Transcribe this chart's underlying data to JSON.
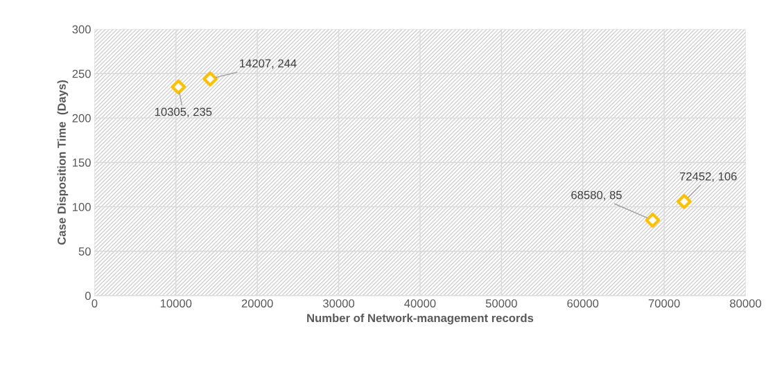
{
  "chart_data": {
    "type": "scatter",
    "xlabel": "Number of Network-management records",
    "ylabel": "Case Disposition Time  (Days)",
    "x": [
      10305,
      14207,
      68580,
      72452
    ],
    "series": [
      {
        "color": "#ffc000",
        "values": [
          235,
          244,
          85,
          106
        ],
        "value_labels": [
          "10305, 235",
          "14207, 244",
          "68580, 85",
          "72452, 106"
        ]
      }
    ],
    "xlim": [
      0,
      80000
    ],
    "xticks": [
      0,
      10000,
      20000,
      30000,
      40000,
      50000,
      60000,
      70000,
      80000
    ],
    "ylim": [
      0,
      300
    ],
    "yticks": [
      0,
      50,
      100,
      150,
      200,
      250,
      300
    ],
    "grid": true,
    "marker": "diamond"
  }
}
